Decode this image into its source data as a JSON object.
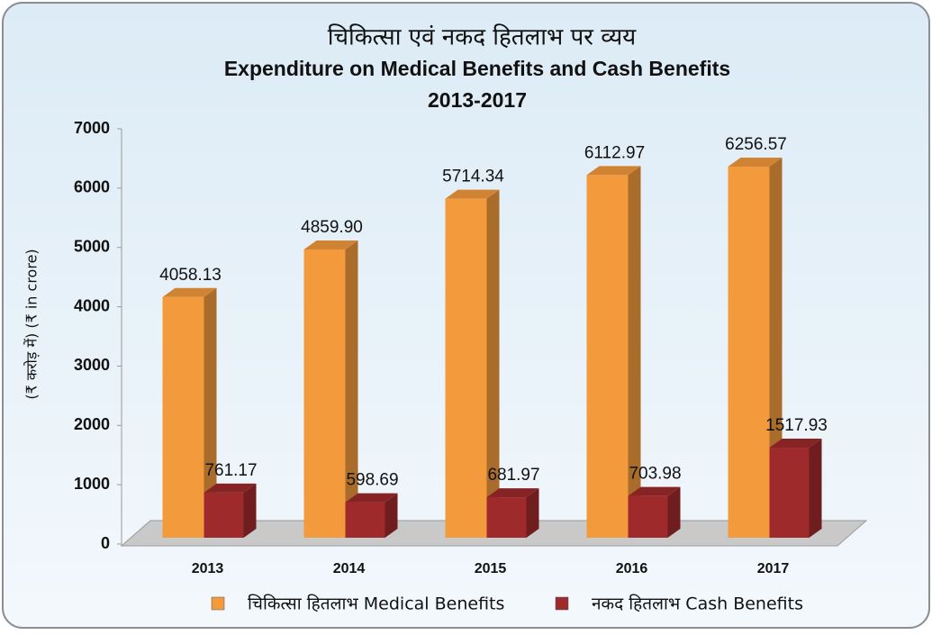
{
  "chart_data": {
    "type": "bar3d",
    "title": [
      "चिकित्सा एवं नकद हितलाभ पर व्यय",
      "Expenditure on Medical Benefits and Cash Benefits",
      "2013-2017"
    ],
    "ylabel": "(₹ करोड़ में)  (₹ in crore)",
    "categories": [
      "2013",
      "2014",
      "2015",
      "2016",
      "2017"
    ],
    "series": [
      {
        "name": "चिकित्सा हितलाभ Medical Benefits",
        "color": "#f39a3c",
        "values": [
          4058.13,
          4859.9,
          5714.34,
          6112.97,
          6256.57
        ],
        "value_labels": [
          "4058.13",
          "4859.90",
          "5714.34",
          "6112.97",
          "6256.57"
        ]
      },
      {
        "name": "नकद हितलाभ Cash Benefits",
        "color": "#9e2a2b",
        "values": [
          761.17,
          598.69,
          681.97,
          703.98,
          1517.93
        ],
        "value_labels": [
          "761.17",
          "598.69",
          "681.97",
          "703.98",
          "1517.93"
        ]
      }
    ],
    "ylim": [
      0,
      7000
    ],
    "yticks": [
      0,
      1000,
      2000,
      3000,
      4000,
      5000,
      6000,
      7000
    ]
  }
}
